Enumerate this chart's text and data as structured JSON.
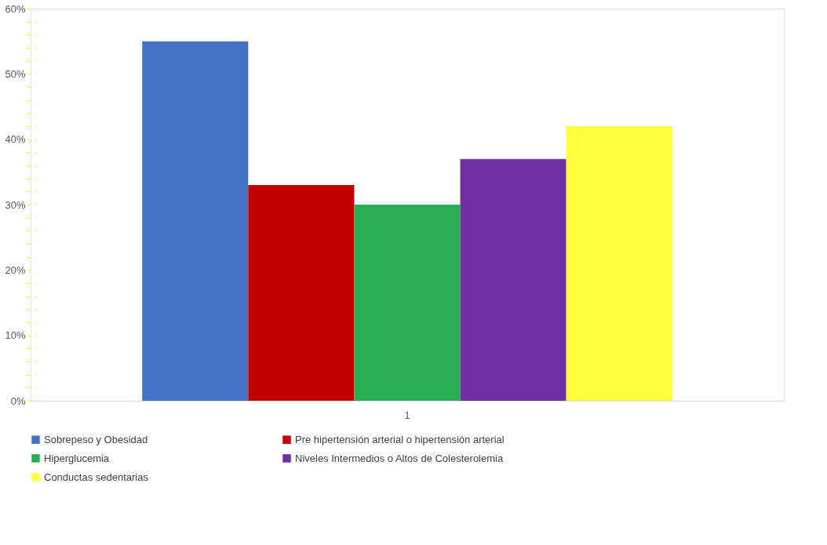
{
  "chart_data": {
    "type": "bar",
    "categories": [
      "1"
    ],
    "series": [
      {
        "name": "Sobrepeso y Obesidad",
        "color": "#4472c4",
        "values": [
          55
        ]
      },
      {
        "name": "Pre hipertensión arterial o hipertensión arterial",
        "color": "#c00000",
        "values": [
          33
        ]
      },
      {
        "name": "Hiperglucemia",
        "color": "#27ae52",
        "values": [
          30
        ]
      },
      {
        "name": "Niveles Intermedios o Altos de Colesterolemia",
        "color": "#7030a0",
        "values": [
          37
        ]
      },
      {
        "name": "Conductas sedentarias",
        "color": "#ffff3f",
        "values": [
          42
        ]
      }
    ],
    "ylim": [
      0,
      60
    ],
    "yticks": [
      {
        "value": 0,
        "label": "0%"
      },
      {
        "value": 2,
        "label": null
      },
      {
        "value": 4,
        "label": null
      },
      {
        "value": 6,
        "label": null
      },
      {
        "value": 8,
        "label": null
      },
      {
        "value": 10,
        "label": "10%"
      },
      {
        "value": 12,
        "label": null
      },
      {
        "value": 14,
        "label": null
      },
      {
        "value": 16,
        "label": null
      },
      {
        "value": 18,
        "label": null
      },
      {
        "value": 20,
        "label": "20%"
      },
      {
        "value": 22,
        "label": null
      },
      {
        "value": 24,
        "label": null
      },
      {
        "value": 26,
        "label": null
      },
      {
        "value": 28,
        "label": null
      },
      {
        "value": 30,
        "label": "30%"
      },
      {
        "value": 32,
        "label": null
      },
      {
        "value": 34,
        "label": null
      },
      {
        "value": 36,
        "label": null
      },
      {
        "value": 38,
        "label": null
      },
      {
        "value": 40,
        "label": "40%"
      },
      {
        "value": 42,
        "label": null
      },
      {
        "value": 44,
        "label": null
      },
      {
        "value": 46,
        "label": null
      },
      {
        "value": 48,
        "label": null
      },
      {
        "value": 50,
        "label": "50%"
      },
      {
        "value": 52,
        "label": null
      },
      {
        "value": 54,
        "label": null
      },
      {
        "value": 56,
        "label": null
      },
      {
        "value": 58,
        "label": null
      },
      {
        "value": 60,
        "label": "60%"
      }
    ],
    "grid": false,
    "legend": "bottom"
  }
}
